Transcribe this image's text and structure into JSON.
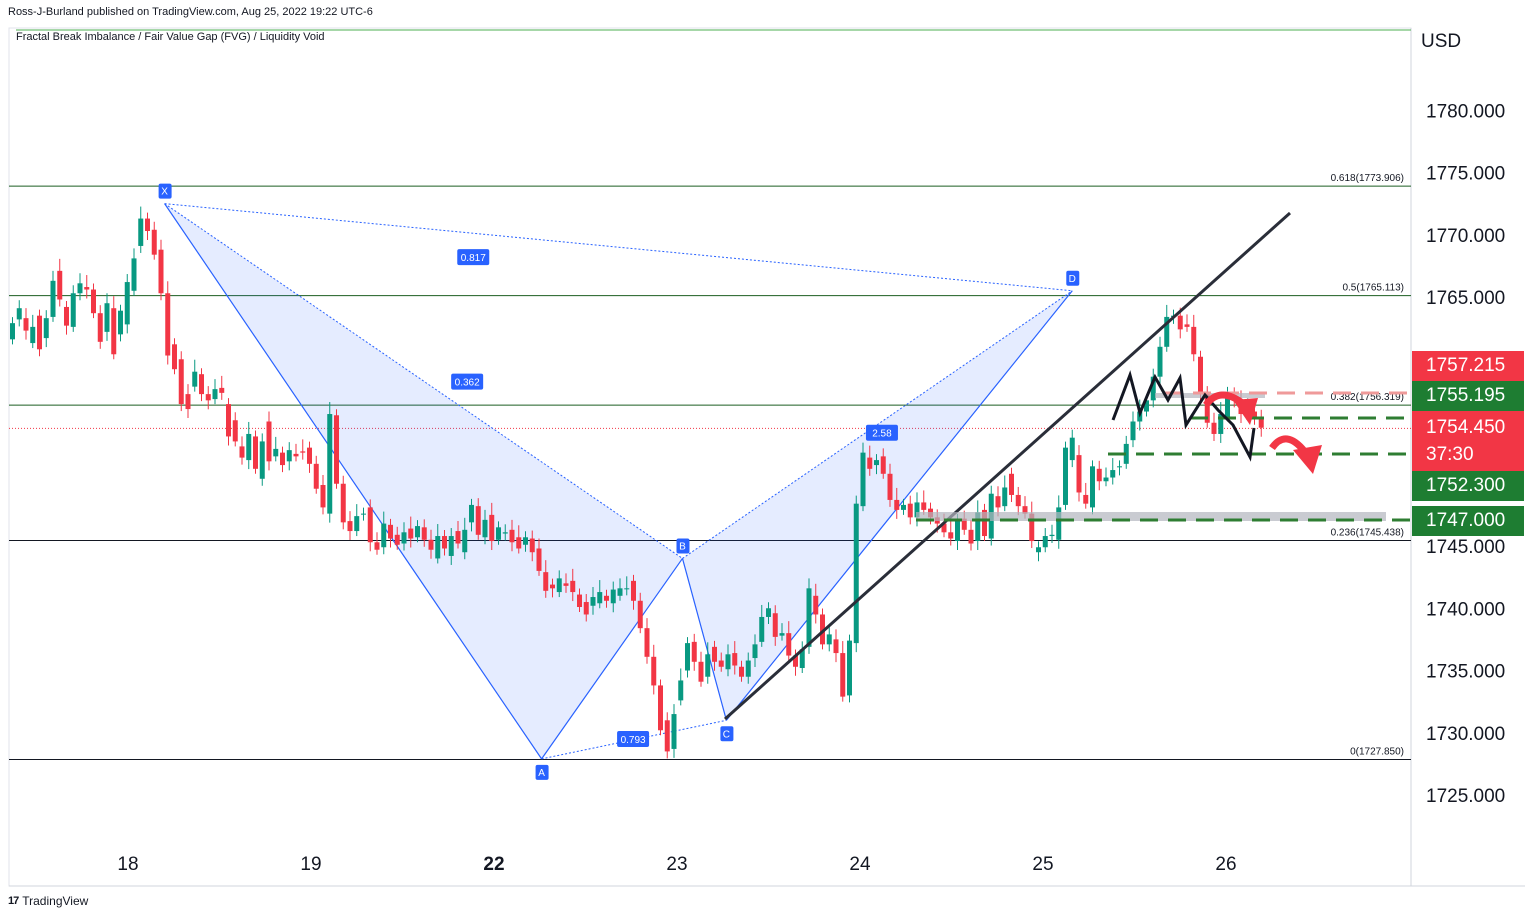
{
  "header": {
    "publisher": "Ross-J-Burland published on TradingView.com, Aug 25, 2022 19:22 UTC-6",
    "indicator": "Fractal Break Imbalance / Fair Value Gap (FVG) / Liquidity Void",
    "currency": "USD",
    "footer_brand": "TradingView",
    "footer_logo": "17"
  },
  "colors": {
    "up": "#089981",
    "down": "#f23645",
    "pattern": "#2962ff",
    "label_red": "#f23645",
    "label_green": "#1e7d32"
  },
  "chart_data": {
    "type": "candlestick",
    "title": "",
    "y_ticks": [
      "1780.000",
      "1775.000",
      "1770.000",
      "1765.000",
      "1745.000",
      "1740.000",
      "1735.000",
      "1730.000",
      "1725.000"
    ],
    "x_ticks": [
      "18",
      "19",
      "22",
      "23",
      "24",
      "25",
      "26"
    ],
    "fib_levels": [
      {
        "label": "0.618(1773.906)",
        "value": 1773.906
      },
      {
        "label": "0.5(1765.113)",
        "value": 1765.113
      },
      {
        "label": "0.382(1756.319)",
        "value": 1756.319
      },
      {
        "label": "0.236(1745.438)",
        "value": 1745.438
      },
      {
        "label": "0(1727.850)",
        "value": 1727.85
      }
    ],
    "current_price": 1754.45,
    "pattern_points": [
      {
        "name": "X",
        "day": 18.2,
        "price": 1772.5
      },
      {
        "name": "A",
        "day": 22.26,
        "price": 1727.9
      },
      {
        "name": "B",
        "day": 23.03,
        "price": 1744.0
      },
      {
        "name": "C",
        "day": 23.27,
        "price": 1731.0
      },
      {
        "name": "D",
        "day": 25.16,
        "price": 1765.5
      }
    ],
    "pattern_ratios": [
      {
        "label": "0.817",
        "day": 21.66,
        "price": 1768.2
      },
      {
        "label": "0.362",
        "day": 21.56,
        "price": 1758.2
      },
      {
        "label": "0.793",
        "day": 22.76,
        "price": 1729.5
      },
      {
        "label": "2.58",
        "day": 24.12,
        "price": 1754.1
      }
    ],
    "price_labels": [
      {
        "value": "1757.215",
        "color": "red"
      },
      {
        "value": "1755.195",
        "color": "green"
      },
      {
        "value": "1754.450",
        "countdown": "37:30",
        "color": "red"
      },
      {
        "value": "1752.300",
        "color": "green"
      },
      {
        "value": "1747.000",
        "color": "green"
      }
    ],
    "candles": [
      {
        "d": 17.4,
        "o": 1761.6,
        "c": 1762.9
      },
      {
        "d": 17.45,
        "o": 1763.2,
        "c": 1764.1
      },
      {
        "d": 17.5,
        "o": 1763.3,
        "c": 1762.3
      },
      {
        "d": 17.55,
        "o": 1761.3,
        "c": 1762.6
      },
      {
        "d": 17.6,
        "o": 1763.5,
        "c": 1760.8
      },
      {
        "d": 17.65,
        "o": 1761.7,
        "c": 1763.3
      },
      {
        "d": 17.7,
        "o": 1763.4,
        "c": 1766.3
      },
      {
        "d": 17.75,
        "o": 1767.1,
        "c": 1764.8
      },
      {
        "d": 17.8,
        "o": 1764.2,
        "c": 1762.7
      },
      {
        "d": 17.85,
        "o": 1762.6,
        "c": 1765.3
      },
      {
        "d": 17.9,
        "o": 1765.3,
        "c": 1766.1
      },
      {
        "d": 17.95,
        "o": 1765.8,
        "c": 1765.6
      },
      {
        "d": 18.0,
        "o": 1765.6,
        "c": 1763.7
      },
      {
        "d": 18.05,
        "o": 1763.7,
        "c": 1761.4
      },
      {
        "d": 18.1,
        "o": 1762.2,
        "c": 1764.5
      },
      {
        "d": 18.15,
        "o": 1764.1,
        "c": 1760.4
      },
      {
        "d": 18.2,
        "o": 1762.0,
        "c": 1763.9
      },
      {
        "d": 18.25,
        "o": 1762.8,
        "c": 1766.2
      },
      {
        "d": 18.3,
        "o": 1765.5,
        "c": 1768.1
      },
      {
        "d": 18.35,
        "o": 1769.1,
        "c": 1771.3
      },
      {
        "d": 18.4,
        "o": 1771.3,
        "c": 1770.3
      },
      {
        "d": 18.45,
        "o": 1770.4,
        "c": 1768.4
      },
      {
        "d": 18.5,
        "o": 1768.8,
        "c": 1765.3
      },
      {
        "d": 18.55,
        "o": 1765.3,
        "c": 1760.3
      },
      {
        "d": 18.6,
        "o": 1761.2,
        "c": 1759.2
      },
      {
        "d": 18.65,
        "o": 1760.0,
        "c": 1756.4
      },
      {
        "d": 18.7,
        "o": 1757.2,
        "c": 1756.0
      },
      {
        "d": 18.75,
        "o": 1757.8,
        "c": 1759.0
      },
      {
        "d": 18.8,
        "o": 1758.8,
        "c": 1757.2
      },
      {
        "d": 18.85,
        "o": 1757.2,
        "c": 1756.7
      },
      {
        "d": 18.9,
        "o": 1756.8,
        "c": 1757.6
      },
      {
        "d": 18.95,
        "o": 1757.7,
        "c": 1757.3
      },
      {
        "d": 19.0,
        "o": 1756.4,
        "c": 1753.8
      },
      {
        "d": 19.05,
        "o": 1755.1,
        "c": 1753.4
      },
      {
        "d": 19.1,
        "o": 1753.0,
        "c": 1752.1
      },
      {
        "d": 19.15,
        "o": 1751.9,
        "c": 1754.0
      },
      {
        "d": 19.2,
        "o": 1753.8,
        "c": 1751.2
      },
      {
        "d": 19.25,
        "o": 1750.4,
        "c": 1753.4
      },
      {
        "d": 19.3,
        "o": 1755.0,
        "c": 1751.8
      },
      {
        "d": 19.35,
        "o": 1752.2,
        "c": 1752.8
      },
      {
        "d": 19.4,
        "o": 1752.5,
        "c": 1751.5
      },
      {
        "d": 19.45,
        "o": 1751.8,
        "c": 1752.7
      },
      {
        "d": 19.5,
        "o": 1752.4,
        "c": 1752.2
      },
      {
        "d": 19.55,
        "o": 1752.6,
        "c": 1752.5
      },
      {
        "d": 19.6,
        "o": 1752.9,
        "c": 1751.6
      },
      {
        "d": 19.65,
        "o": 1751.6,
        "c": 1749.6
      },
      {
        "d": 19.7,
        "o": 1749.9,
        "c": 1748.1
      },
      {
        "d": 19.75,
        "o": 1747.6,
        "c": 1755.6
      },
      {
        "d": 19.8,
        "o": 1755.5,
        "c": 1750.0
      },
      {
        "d": 19.85,
        "o": 1750.0,
        "c": 1746.9
      },
      {
        "d": 19.9,
        "o": 1747.0,
        "c": 1746.2
      },
      {
        "d": 19.95,
        "o": 1746.2,
        "c": 1747.4
      },
      {
        "d": 20.0,
        "o": 1747.6,
        "c": 1747.6
      },
      {
        "d": 20.05,
        "o": 1748.1,
        "c": 1745.3
      },
      {
        "d": 20.1,
        "o": 1745.3,
        "c": 1744.7
      },
      {
        "d": 20.15,
        "o": 1744.9,
        "c": 1746.8
      },
      {
        "d": 20.2,
        "o": 1746.7,
        "c": 1745.6
      },
      {
        "d": 20.25,
        "o": 1745.9,
        "c": 1745.1
      },
      {
        "d": 20.3,
        "o": 1745.2,
        "c": 1746.1
      },
      {
        "d": 20.35,
        "o": 1746.4,
        "c": 1745.6
      },
      {
        "d": 20.4,
        "o": 1745.7,
        "c": 1746.6
      },
      {
        "d": 20.45,
        "o": 1746.5,
        "c": 1745.5
      },
      {
        "d": 20.5,
        "o": 1745.5,
        "c": 1744.7
      },
      {
        "d": 20.55,
        "o": 1744.0,
        "c": 1745.8
      },
      {
        "d": 20.6,
        "o": 1745.8,
        "c": 1744.8
      },
      {
        "d": 20.65,
        "o": 1744.2,
        "c": 1745.8
      },
      {
        "d": 20.7,
        "o": 1746.2,
        "c": 1745.2
      },
      {
        "d": 20.75,
        "o": 1744.5,
        "c": 1746.3
      },
      {
        "d": 20.8,
        "o": 1746.9,
        "c": 1748.3
      },
      {
        "d": 20.85,
        "o": 1748.2,
        "c": 1745.9
      },
      {
        "d": 20.9,
        "o": 1745.7,
        "c": 1747.1
      },
      {
        "d": 20.95,
        "o": 1747.5,
        "c": 1745.4
      },
      {
        "d": 21.0,
        "o": 1745.5,
        "c": 1746.5
      },
      {
        "d": 21.05,
        "o": 1746.0,
        "c": 1746.1
      },
      {
        "d": 21.1,
        "o": 1746.3,
        "c": 1745.3
      },
      {
        "d": 21.15,
        "o": 1745.7,
        "c": 1744.8
      },
      {
        "d": 21.2,
        "o": 1745.1,
        "c": 1745.7
      },
      {
        "d": 21.25,
        "o": 1745.6,
        "c": 1744.5
      },
      {
        "d": 21.3,
        "o": 1744.8,
        "c": 1743.0
      },
      {
        "d": 21.35,
        "o": 1742.9,
        "c": 1741.4
      },
      {
        "d": 21.4,
        "o": 1741.9,
        "c": 1741.6
      },
      {
        "d": 21.45,
        "o": 1741.3,
        "c": 1742.4
      },
      {
        "d": 21.5,
        "o": 1742.0,
        "c": 1741.8
      },
      {
        "d": 21.55,
        "o": 1742.2,
        "c": 1741.3
      },
      {
        "d": 21.6,
        "o": 1741.1,
        "c": 1740.1
      },
      {
        "d": 21.65,
        "o": 1740.5,
        "c": 1739.5
      },
      {
        "d": 21.7,
        "o": 1740.2,
        "c": 1740.9
      },
      {
        "d": 21.75,
        "o": 1740.4,
        "c": 1741.3
      },
      {
        "d": 21.8,
        "o": 1741.0,
        "c": 1740.6
      },
      {
        "d": 21.85,
        "o": 1740.4,
        "c": 1741.5
      },
      {
        "d": 21.9,
        "o": 1741.0,
        "c": 1741.6
      },
      {
        "d": 21.95,
        "o": 1741.6,
        "c": 1741.6
      },
      {
        "d": 22.0,
        "o": 1742.2,
        "c": 1740.6
      },
      {
        "d": 22.05,
        "o": 1740.6,
        "c": 1738.4
      },
      {
        "d": 22.1,
        "o": 1738.4,
        "c": 1736.1
      },
      {
        "d": 22.15,
        "o": 1736.1,
        "c": 1733.8
      },
      {
        "d": 22.2,
        "o": 1733.8,
        "c": 1730.2
      },
      {
        "d": 22.25,
        "o": 1731.0,
        "c": 1728.5
      },
      {
        "d": 22.3,
        "o": 1728.7,
        "c": 1731.5
      },
      {
        "d": 22.35,
        "o": 1732.6,
        "c": 1734.2
      },
      {
        "d": 22.4,
        "o": 1735.0,
        "c": 1737.2
      },
      {
        "d": 22.45,
        "o": 1737.3,
        "c": 1735.7
      },
      {
        "d": 22.5,
        "o": 1735.7,
        "c": 1734.1
      },
      {
        "d": 22.55,
        "o": 1734.5,
        "c": 1736.3
      },
      {
        "d": 22.6,
        "o": 1736.9,
        "c": 1735.7
      },
      {
        "d": 22.65,
        "o": 1735.8,
        "c": 1735.3
      },
      {
        "d": 22.7,
        "o": 1735.1,
        "c": 1736.3
      },
      {
        "d": 22.75,
        "o": 1736.4,
        "c": 1735.4
      },
      {
        "d": 22.8,
        "o": 1735.3,
        "c": 1734.5
      },
      {
        "d": 22.85,
        "o": 1734.5,
        "c": 1735.8
      },
      {
        "d": 22.9,
        "o": 1736.0,
        "c": 1737.1
      },
      {
        "d": 22.95,
        "o": 1737.3,
        "c": 1739.3
      },
      {
        "d": 23.0,
        "o": 1739.3,
        "c": 1740.0
      },
      {
        "d": 23.05,
        "o": 1739.6,
        "c": 1737.7
      },
      {
        "d": 23.1,
        "o": 1737.8,
        "c": 1738.0
      },
      {
        "d": 23.15,
        "o": 1738.0,
        "c": 1736.2
      },
      {
        "d": 23.2,
        "o": 1736.2,
        "c": 1735.3
      },
      {
        "d": 23.25,
        "o": 1735.2,
        "c": 1736.7
      },
      {
        "d": 23.3,
        "o": 1736.9,
        "c": 1741.6
      },
      {
        "d": 23.35,
        "o": 1741.0,
        "c": 1739.5
      },
      {
        "d": 23.4,
        "o": 1739.5,
        "c": 1737.1
      },
      {
        "d": 23.45,
        "o": 1737.1,
        "c": 1737.9
      },
      {
        "d": 23.5,
        "o": 1737.5,
        "c": 1736.4
      },
      {
        "d": 23.55,
        "o": 1736.4,
        "c": 1732.9
      },
      {
        "d": 23.6,
        "o": 1733.0,
        "c": 1737.4
      },
      {
        "d": 23.65,
        "o": 1737.2,
        "c": 1748.4
      },
      {
        "d": 23.7,
        "o": 1748.2,
        "c": 1752.5
      },
      {
        "d": 23.75,
        "o": 1752.1,
        "c": 1751.2
      },
      {
        "d": 23.8,
        "o": 1751.5,
        "c": 1751.9
      },
      {
        "d": 23.85,
        "o": 1752.2,
        "c": 1750.8
      },
      {
        "d": 23.9,
        "o": 1750.8,
        "c": 1748.7
      },
      {
        "d": 23.95,
        "o": 1748.7,
        "c": 1747.9
      },
      {
        "d": 24.0,
        "o": 1747.9,
        "c": 1748.3
      },
      {
        "d": 24.05,
        "o": 1748.4,
        "c": 1747.3
      },
      {
        "d": 24.1,
        "o": 1747.3,
        "c": 1748.5
      },
      {
        "d": 24.15,
        "o": 1748.5,
        "c": 1747.9
      },
      {
        "d": 24.2,
        "o": 1748.0,
        "c": 1747.3
      },
      {
        "d": 24.25,
        "o": 1747.3,
        "c": 1746.8
      },
      {
        "d": 24.3,
        "o": 1746.8,
        "c": 1746.1
      },
      {
        "d": 24.35,
        "o": 1746.1,
        "c": 1745.6
      },
      {
        "d": 24.4,
        "o": 1745.4,
        "c": 1747.1
      },
      {
        "d": 24.45,
        "o": 1747.2,
        "c": 1746.3
      },
      {
        "d": 24.5,
        "o": 1746.3,
        "c": 1745.2
      },
      {
        "d": 24.55,
        "o": 1745.4,
        "c": 1747.7
      },
      {
        "d": 24.6,
        "o": 1747.9,
        "c": 1745.8
      },
      {
        "d": 24.65,
        "o": 1745.6,
        "c": 1749.2
      },
      {
        "d": 24.7,
        "o": 1749.0,
        "c": 1748.1
      },
      {
        "d": 24.75,
        "o": 1748.2,
        "c": 1749.7
      },
      {
        "d": 24.8,
        "o": 1750.8,
        "c": 1749.1
      },
      {
        "d": 24.85,
        "o": 1749.1,
        "c": 1748.2
      },
      {
        "d": 24.9,
        "o": 1748.2,
        "c": 1747.6
      },
      {
        "d": 24.95,
        "o": 1747.6,
        "c": 1745.4
      },
      {
        "d": 25.0,
        "o": 1744.5,
        "c": 1744.9
      },
      {
        "d": 25.05,
        "o": 1744.9,
        "c": 1745.8
      },
      {
        "d": 25.1,
        "o": 1745.8,
        "c": 1745.9
      },
      {
        "d": 25.15,
        "o": 1745.5,
        "c": 1748.1
      },
      {
        "d": 25.2,
        "o": 1748.3,
        "c": 1752.9
      },
      {
        "d": 25.25,
        "o": 1751.9,
        "c": 1753.7
      },
      {
        "d": 25.3,
        "o": 1752.3,
        "c": 1749.3
      },
      {
        "d": 25.35,
        "o": 1749.1,
        "c": 1748.4
      },
      {
        "d": 25.4,
        "o": 1748.1,
        "c": 1751.4
      },
      {
        "d": 25.45,
        "o": 1751.2,
        "c": 1750.2
      },
      {
        "d": 25.5,
        "o": 1750.2,
        "c": 1750.5
      },
      {
        "d": 25.55,
        "o": 1750.5,
        "c": 1751.1
      },
      {
        "d": 25.6,
        "o": 1751.4,
        "c": 1751.4
      },
      {
        "d": 25.65,
        "o": 1751.6,
        "c": 1753.2
      },
      {
        "d": 25.7,
        "o": 1753.5,
        "c": 1755.0
      },
      {
        "d": 25.75,
        "o": 1755.0,
        "c": 1755.8
      },
      {
        "d": 25.8,
        "o": 1755.8,
        "c": 1756.7
      },
      {
        "d": 25.85,
        "o": 1756.7,
        "c": 1758.6
      },
      {
        "d": 25.9,
        "o": 1758.6,
        "c": 1761.0
      },
      {
        "d": 25.95,
        "o": 1761.0,
        "c": 1763.4
      },
      {
        "d": 26.0,
        "o": 1763.4,
        "c": 1763.5
      },
      {
        "d": 26.05,
        "o": 1763.5,
        "c": 1762.4
      },
      {
        "d": 26.1,
        "o": 1762.8,
        "c": 1762.6
      },
      {
        "d": 26.15,
        "o": 1762.6,
        "c": 1760.4
      },
      {
        "d": 26.2,
        "o": 1760.2,
        "c": 1757.2
      },
      {
        "d": 26.25,
        "o": 1757.2,
        "c": 1754.9
      },
      {
        "d": 26.3,
        "o": 1754.9,
        "c": 1754.0
      },
      {
        "d": 26.35,
        "o": 1754.0,
        "c": 1755.6
      },
      {
        "d": 26.4,
        "o": 1755.4,
        "c": 1757.3
      },
      {
        "d": 26.45,
        "o": 1757.1,
        "c": 1756.7
      },
      {
        "d": 26.5,
        "o": 1756.7,
        "c": 1755.6
      },
      {
        "d": 26.55,
        "o": 1755.6,
        "c": 1755.9
      },
      {
        "d": 26.6,
        "o": 1755.8,
        "c": 1755.3
      },
      {
        "d": 26.65,
        "o": 1755.3,
        "c": 1754.5
      }
    ]
  }
}
